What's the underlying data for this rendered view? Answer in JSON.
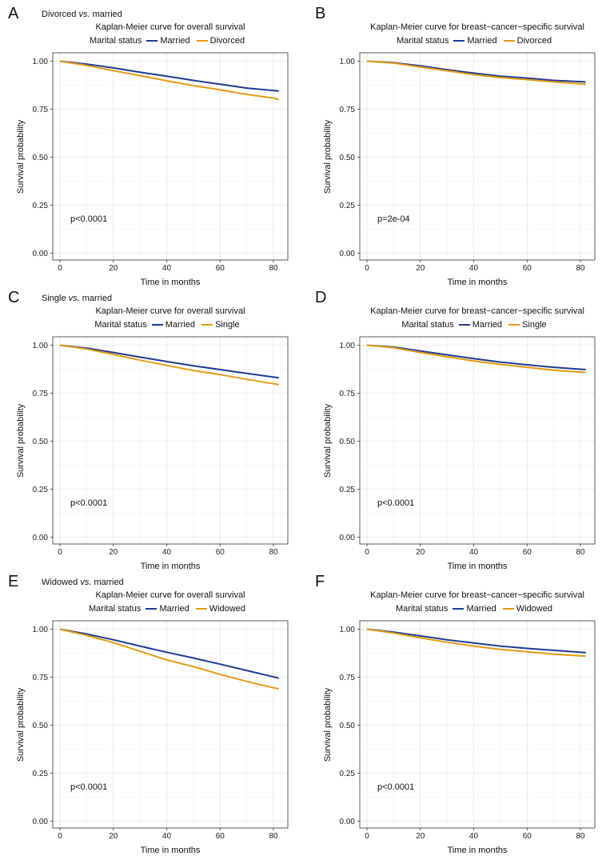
{
  "colors": {
    "married": "#1f3b8f",
    "comparison": "#e39a12",
    "grid": "#e5e5e5"
  },
  "chart_data": [
    {
      "type": "line",
      "panel": "A",
      "comparison_label": "Divorced",
      "comparison_suffix": "married",
      "title": "Kaplan-Meier curve for overall survival",
      "legend_title": "Marital status",
      "legend": [
        "Married",
        "Divorced"
      ],
      "xlabel": "Time in months",
      "ylabel": "Survival probability",
      "xlim": [
        0,
        84
      ],
      "ylim": [
        0,
        1
      ],
      "xticks": [
        "0",
        "20",
        "40",
        "60",
        "80"
      ],
      "yticks": [
        "0.00",
        "0.25",
        "0.50",
        "0.75",
        "1.00"
      ],
      "pvalue": "p<0.0001",
      "series": [
        {
          "name": "Married",
          "x": [
            0,
            10,
            20,
            30,
            40,
            50,
            60,
            70,
            82
          ],
          "values": [
            1.0,
            0.985,
            0.965,
            0.943,
            0.922,
            0.9,
            0.88,
            0.86,
            0.845
          ]
        },
        {
          "name": "Divorced",
          "x": [
            0,
            10,
            20,
            30,
            40,
            50,
            60,
            70,
            80,
            82
          ],
          "values": [
            1.0,
            0.978,
            0.951,
            0.925,
            0.898,
            0.873,
            0.851,
            0.827,
            0.808,
            0.8
          ]
        }
      ]
    },
    {
      "type": "line",
      "panel": "B",
      "comparison_label": "",
      "comparison_suffix": "",
      "title": "Kaplan-Meier curve for breast−cancer−specific survival",
      "legend_title": "Marital status",
      "legend": [
        "Married",
        "Divorced"
      ],
      "xlabel": "Time in months",
      "ylabel": "Survival probability",
      "xlim": [
        0,
        84
      ],
      "ylim": [
        0,
        1
      ],
      "xticks": [
        "0",
        "20",
        "40",
        "60",
        "80"
      ],
      "yticks": [
        "0.00",
        "0.25",
        "0.50",
        "0.75",
        "1.00"
      ],
      "pvalue": "p=2e-04",
      "series": [
        {
          "name": "Married",
          "x": [
            0,
            10,
            20,
            30,
            40,
            50,
            60,
            70,
            82
          ],
          "values": [
            1.0,
            0.992,
            0.976,
            0.956,
            0.938,
            0.922,
            0.912,
            0.9,
            0.892
          ]
        },
        {
          "name": "Divorced",
          "x": [
            0,
            10,
            20,
            30,
            40,
            50,
            60,
            70,
            82
          ],
          "values": [
            1.0,
            0.99,
            0.97,
            0.95,
            0.93,
            0.915,
            0.904,
            0.892,
            0.88
          ]
        }
      ]
    },
    {
      "type": "line",
      "panel": "C",
      "comparison_label": "Single",
      "comparison_suffix": "married",
      "title": "Kaplan-Meier curve for overall survival",
      "legend_title": "Marital status",
      "legend": [
        "Married",
        "Single"
      ],
      "xlabel": "Time in months",
      "ylabel": "Survival probability",
      "xlim": [
        0,
        84
      ],
      "ylim": [
        0,
        1
      ],
      "xticks": [
        "0",
        "20",
        "40",
        "60",
        "80"
      ],
      "yticks": [
        "0.00",
        "0.25",
        "0.50",
        "0.75",
        "1.00"
      ],
      "pvalue": "p<0.0001",
      "series": [
        {
          "name": "Married",
          "x": [
            0,
            10,
            20,
            30,
            40,
            50,
            60,
            70,
            82
          ],
          "values": [
            1.0,
            0.985,
            0.962,
            0.938,
            0.915,
            0.893,
            0.873,
            0.853,
            0.83
          ]
        },
        {
          "name": "Single",
          "x": [
            0,
            10,
            20,
            30,
            40,
            50,
            60,
            70,
            82
          ],
          "values": [
            1.0,
            0.98,
            0.952,
            0.922,
            0.895,
            0.868,
            0.847,
            0.822,
            0.795
          ]
        }
      ]
    },
    {
      "type": "line",
      "panel": "D",
      "comparison_label": "",
      "comparison_suffix": "",
      "title": "Kaplan-Meier curve for breast−cancer−specific survival",
      "legend_title": "Marital status",
      "legend": [
        "Married",
        "Single"
      ],
      "xlabel": "Time in months",
      "ylabel": "Survival probability",
      "xlim": [
        0,
        84
      ],
      "ylim": [
        0,
        1
      ],
      "xticks": [
        "0",
        "20",
        "40",
        "60",
        "80"
      ],
      "yticks": [
        "0.00",
        "0.25",
        "0.50",
        "0.75",
        "1.00"
      ],
      "pvalue": "p<0.0001",
      "series": [
        {
          "name": "Married",
          "x": [
            0,
            10,
            20,
            30,
            40,
            50,
            60,
            70,
            82
          ],
          "values": [
            1.0,
            0.99,
            0.97,
            0.95,
            0.93,
            0.912,
            0.898,
            0.885,
            0.873
          ]
        },
        {
          "name": "Single",
          "x": [
            0,
            10,
            20,
            30,
            40,
            50,
            60,
            70,
            82
          ],
          "values": [
            1.0,
            0.987,
            0.962,
            0.94,
            0.918,
            0.9,
            0.885,
            0.87,
            0.858
          ]
        }
      ]
    },
    {
      "type": "line",
      "panel": "E",
      "comparison_label": "Widowed",
      "comparison_suffix": "married",
      "title": "Kaplan-Meier curve for overall survival",
      "legend_title": "Marital status",
      "legend": [
        "Married",
        "Widowed"
      ],
      "xlabel": "Time in months",
      "ylabel": "Survival probability",
      "xlim": [
        0,
        84
      ],
      "ylim": [
        0,
        1
      ],
      "xticks": [
        "0",
        "20",
        "40",
        "60",
        "80"
      ],
      "yticks": [
        "0.00",
        "0.25",
        "0.50",
        "0.75",
        "1.00"
      ],
      "pvalue": "p<0.0001",
      "series": [
        {
          "name": "Married",
          "x": [
            0,
            10,
            20,
            30,
            40,
            50,
            60,
            70,
            82
          ],
          "values": [
            1.0,
            0.975,
            0.945,
            0.912,
            0.88,
            0.85,
            0.818,
            0.785,
            0.745
          ]
        },
        {
          "name": "Widowed",
          "x": [
            0,
            10,
            20,
            30,
            40,
            50,
            60,
            70,
            80,
            82
          ],
          "values": [
            1.0,
            0.968,
            0.93,
            0.885,
            0.84,
            0.805,
            0.765,
            0.728,
            0.695,
            0.69
          ]
        }
      ]
    },
    {
      "type": "line",
      "panel": "F",
      "comparison_label": "",
      "comparison_suffix": "",
      "title": "Kaplan-Meier curve for breast−cancer−specific survival",
      "legend_title": "Marital status",
      "legend": [
        "Married",
        "Widowed"
      ],
      "xlabel": "Time in months",
      "ylabel": "Survival probability",
      "xlim": [
        0,
        84
      ],
      "ylim": [
        0,
        1
      ],
      "xticks": [
        "0",
        "20",
        "40",
        "60",
        "80"
      ],
      "yticks": [
        "0.00",
        "0.25",
        "0.50",
        "0.75",
        "1.00"
      ],
      "pvalue": "p<0.0001",
      "series": [
        {
          "name": "Married",
          "x": [
            0,
            10,
            20,
            30,
            40,
            50,
            60,
            70,
            82
          ],
          "values": [
            1.0,
            0.985,
            0.965,
            0.945,
            0.928,
            0.912,
            0.9,
            0.89,
            0.878
          ]
        },
        {
          "name": "Widowed",
          "x": [
            0,
            10,
            20,
            30,
            40,
            50,
            60,
            70,
            82
          ],
          "values": [
            1.0,
            0.98,
            0.955,
            0.932,
            0.912,
            0.895,
            0.882,
            0.87,
            0.86
          ]
        }
      ]
    }
  ]
}
